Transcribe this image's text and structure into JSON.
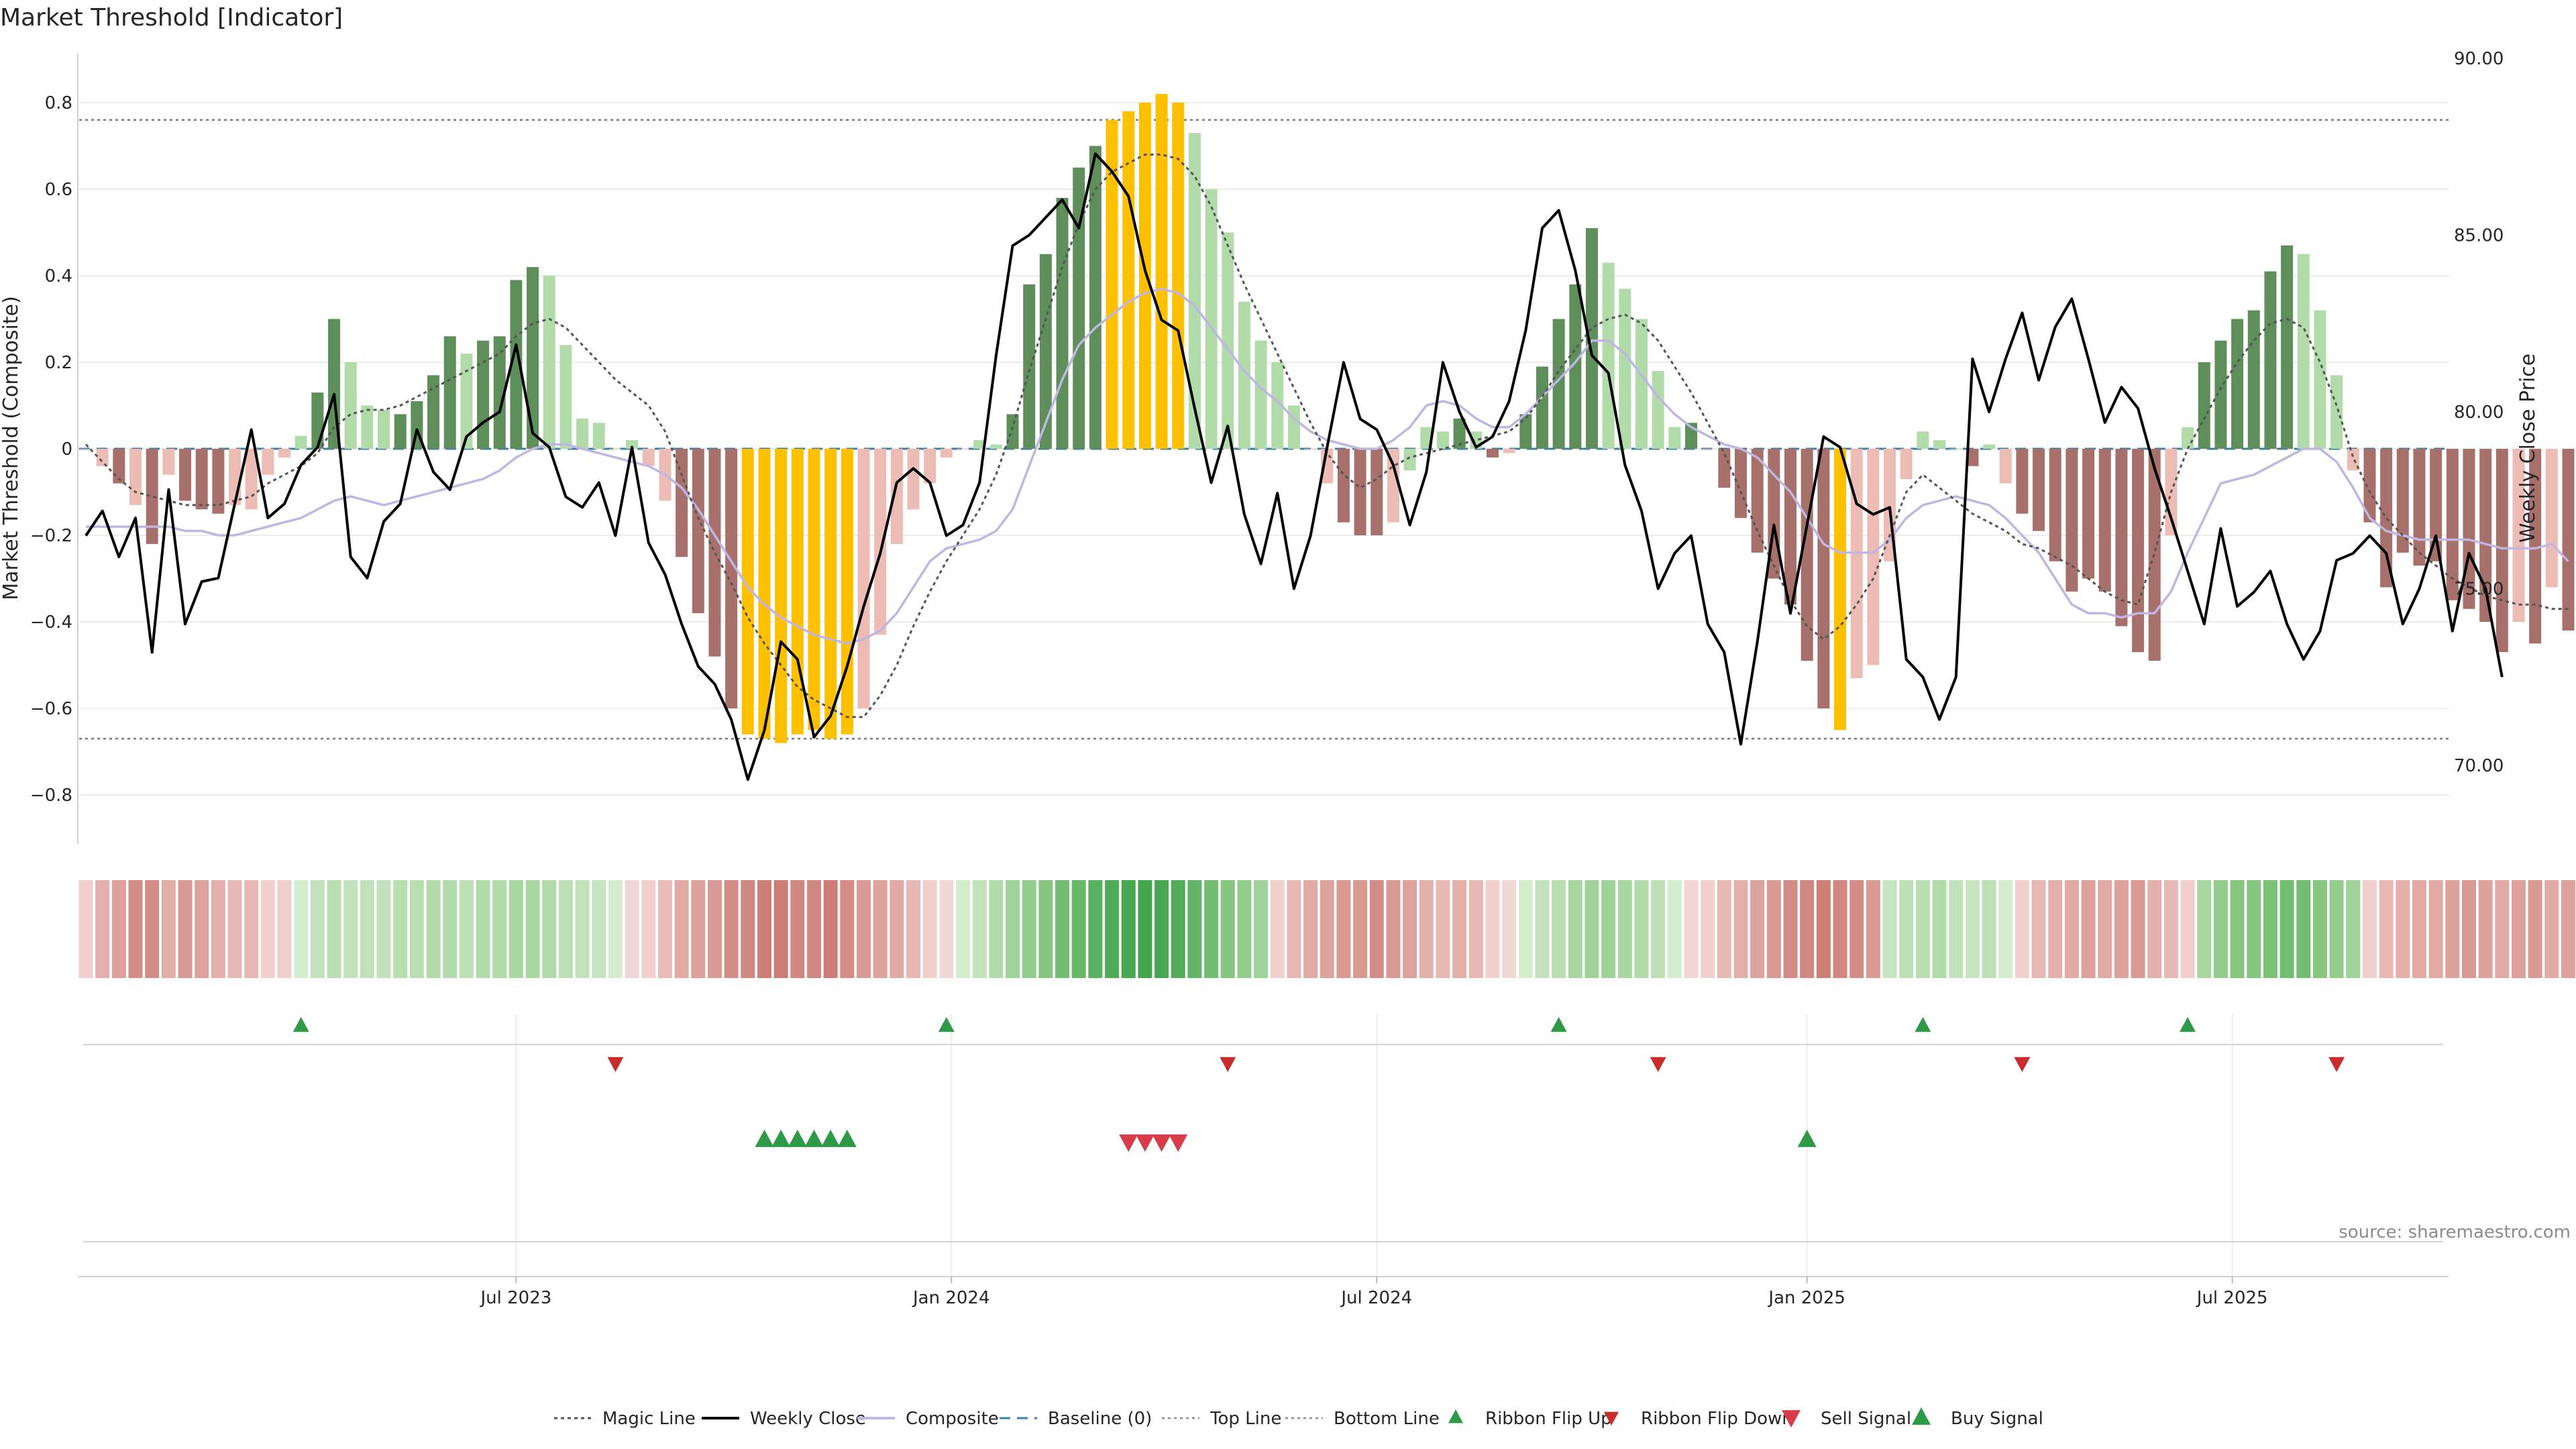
{
  "title": "Market Threshold [Indicator]",
  "source": "source: sharemaestro.com",
  "colors": {
    "bull_strong": "#5e8e5a",
    "bull_weak": "#b2dbaa",
    "bear_strong": "#a8706a",
    "bear_weak": "#ecbcb5",
    "extreme": "#ffc000",
    "magic_line": "#555555",
    "weekly_close": "#000000",
    "composite": "#c0b6e4",
    "baseline": "#3a7fa8",
    "ribbon_flip_up": "#2e9a48",
    "ribbon_flip_down": "#c82c2c",
    "sell_signal": "#d93b48",
    "buy_signal": "#2e9a48"
  },
  "chart_data": {
    "type": "bar",
    "title": "Market Threshold [Indicator]",
    "ylabel_left": "Market Threshold (Composite)",
    "ylabel_right": "Weekly Close Price",
    "ylim_left": [
      -0.92,
      0.92
    ],
    "ylim_right": [
      68.25,
      90.0
    ],
    "y_ticks_left": [
      "0.8",
      "0.6",
      "0.4",
      "0.2",
      "0",
      "−0.2",
      "−0.4",
      "−0.6",
      "−0.8"
    ],
    "y_ticks_right": [
      "90.00",
      "85.00",
      "80.00",
      "75.00",
      "70.00"
    ],
    "x_ticks": [
      "Jul 2023",
      "Jan 2024",
      "Jul 2024",
      "Jan 2025",
      "Jul 2025"
    ],
    "x_tick_weeks": [
      26,
      52.3,
      78,
      104,
      129.7
    ],
    "top_line": 0.76,
    "bottom_line": -0.67,
    "baseline": 0,
    "grid": true,
    "legend_position": "bottom-center",
    "week_start": "2023-01-06",
    "composite": [
      0,
      -0.04,
      -0.08,
      -0.13,
      -0.22,
      -0.06,
      -0.12,
      -0.14,
      -0.15,
      -0.13,
      -0.14,
      -0.06,
      -0.02,
      0.03,
      0.13,
      0.3,
      0.2,
      0.1,
      0.09,
      0.08,
      0.11,
      0.17,
      0.26,
      0.22,
      0.25,
      0.26,
      0.39,
      0.42,
      0.4,
      0.24,
      0.07,
      0.06,
      0,
      0.02,
      -0.04,
      -0.12,
      -0.25,
      -0.38,
      -0.48,
      -0.6,
      -0.66,
      -0.67,
      -0.68,
      -0.66,
      -0.65,
      -0.67,
      -0.66,
      -0.6,
      -0.43,
      -0.22,
      -0.14,
      -0.08,
      -0.02,
      0,
      0.02,
      0.01,
      0.08,
      0.38,
      0.45,
      0.58,
      0.65,
      0.7,
      0.76,
      0.78,
      0.8,
      0.82,
      0.8,
      0.73,
      0.6,
      0.5,
      0.34,
      0.25,
      0.2,
      0.1,
      0,
      -0.08,
      -0.17,
      -0.2,
      -0.2,
      -0.17,
      -0.05,
      0.05,
      0.04,
      0.07,
      0.04,
      -0.02,
      -0.01,
      0.08,
      0.19,
      0.3,
      0.38,
      0.51,
      0.43,
      0.37,
      0.3,
      0.18,
      0.05,
      0.06,
      0,
      -0.09,
      -0.16,
      -0.24,
      -0.3,
      -0.36,
      -0.49,
      -0.6,
      -0.65,
      -0.53,
      -0.5,
      -0.26,
      -0.07,
      0.04,
      0.02,
      0,
      -0.04,
      0.01,
      -0.08,
      -0.15,
      -0.19,
      -0.26,
      -0.33,
      -0.3,
      -0.33,
      -0.41,
      -0.47,
      -0.49,
      -0.2,
      0.05,
      0.2,
      0.25,
      0.3,
      0.32,
      0.41,
      0.47,
      0.45,
      0.32,
      0.17,
      -0.05,
      -0.17,
      -0.32,
      -0.24,
      -0.27,
      -0.26,
      -0.35,
      -0.37,
      -0.4,
      -0.47,
      -0.4,
      -0.45,
      -0.32,
      -0.42
    ],
    "bar_class": [
      "bear_weak",
      "bear_weak",
      "bear_strong",
      "bear_weak",
      "bear_strong",
      "bear_weak",
      "bear_strong",
      "bear_strong",
      "bear_strong",
      "bear_weak",
      "bear_weak",
      "bear_weak",
      "bear_weak",
      "bull_weak",
      "bull_strong",
      "bull_strong",
      "bull_weak",
      "bull_weak",
      "bull_weak",
      "bull_strong",
      "bull_strong",
      "bull_strong",
      "bull_strong",
      "bull_weak",
      "bull_strong",
      "bull_strong",
      "bull_strong",
      "bull_strong",
      "bull_weak",
      "bull_weak",
      "bull_weak",
      "bull_weak",
      "bull_weak",
      "bull_weak",
      "bear_weak",
      "bear_weak",
      "bear_strong",
      "bear_strong",
      "bear_strong",
      "bear_strong",
      "extreme",
      "extreme",
      "extreme",
      "extreme",
      "extreme",
      "extreme",
      "extreme",
      "bear_weak",
      "bear_weak",
      "bear_weak",
      "bear_weak",
      "bear_weak",
      "bear_weak",
      "bear_weak",
      "bull_weak",
      "bull_weak",
      "bull_strong",
      "bull_strong",
      "bull_strong",
      "bull_strong",
      "bull_strong",
      "bull_strong",
      "extreme",
      "extreme",
      "extreme",
      "extreme",
      "extreme",
      "bull_weak",
      "bull_weak",
      "bull_weak",
      "bull_weak",
      "bull_weak",
      "bull_weak",
      "bull_weak",
      "bear_weak",
      "bear_weak",
      "bear_strong",
      "bear_strong",
      "bear_strong",
      "bear_weak",
      "bull_weak",
      "bull_weak",
      "bull_weak",
      "bull_strong",
      "bull_weak",
      "bear_strong",
      "bear_weak",
      "bull_strong",
      "bull_strong",
      "bull_strong",
      "bull_strong",
      "bull_strong",
      "bull_weak",
      "bull_weak",
      "bull_weak",
      "bull_weak",
      "bull_weak",
      "bull_strong",
      "bear_weak",
      "bear_strong",
      "bear_strong",
      "bear_strong",
      "bear_strong",
      "bear_strong",
      "bear_strong",
      "bear_strong",
      "extreme",
      "bear_weak",
      "bear_weak",
      "bear_weak",
      "bear_weak",
      "bull_weak",
      "bull_weak",
      "bull_weak",
      "bear_strong",
      "bull_weak",
      "bear_weak",
      "bear_strong",
      "bear_strong",
      "bear_strong",
      "bear_strong",
      "bear_strong",
      "bear_strong",
      "bear_strong",
      "bear_strong",
      "bear_strong",
      "bear_weak",
      "bull_weak",
      "bull_strong",
      "bull_strong",
      "bull_strong",
      "bull_strong",
      "bull_strong",
      "bull_strong",
      "bull_weak",
      "bull_weak",
      "bull_weak",
      "bear_weak",
      "bear_strong",
      "bear_strong",
      "bear_strong",
      "bear_strong",
      "bear_strong",
      "bear_strong",
      "bear_strong",
      "bear_strong",
      "bear_strong",
      "bear_weak",
      "bear_strong",
      "bear_weak",
      "bear_strong"
    ],
    "weekly_close": [
      76.5,
      77.2,
      75.9,
      77.0,
      73.2,
      77.8,
      74.0,
      75.2,
      75.3,
      77.4,
      79.5,
      77.0,
      77.4,
      78.5,
      79.0,
      80.5,
      75.9,
      75.3,
      76.9,
      77.4,
      79.5,
      78.3,
      77.8,
      79.3,
      79.7,
      80.0,
      81.9,
      79.4,
      79.0,
      77.6,
      77.3,
      78.0,
      76.5,
      79.0,
      76.3,
      75.4,
      74.0,
      72.8,
      72.3,
      71.3,
      69.6,
      71.0,
      73.5,
      73.0,
      70.8,
      71.4,
      72.8,
      74.5,
      76.0,
      78.0,
      78.4,
      78.0,
      76.5,
      76.8,
      78.0,
      81.6,
      84.7,
      85.0,
      85.5,
      86.0,
      85.2,
      87.3,
      86.8,
      86.1,
      84.0,
      82.6,
      82.3,
      80.1,
      78.0,
      79.6,
      77.1,
      75.7,
      77.7,
      75.0,
      76.5,
      79.0,
      81.4,
      79.8,
      79.5,
      78.5,
      76.8,
      78.3,
      81.4,
      80.0,
      79.0,
      79.3,
      80.3,
      82.3,
      85.2,
      85.7,
      84.0,
      81.6,
      81.1,
      78.5,
      77.2,
      75.0,
      76.0,
      76.5,
      74.0,
      73.2,
      70.6,
      73.5,
      76.8,
      74.3,
      76.8,
      79.3,
      79.0,
      77.4,
      77.1,
      77.3,
      73.0,
      72.5,
      71.3,
      72.5,
      81.5,
      80.0,
      81.5,
      82.8,
      80.9,
      82.4,
      83.2,
      81.5,
      79.7,
      80.7,
      80.1,
      78.4,
      77.0,
      75.5,
      74.0,
      76.7,
      74.5,
      74.9,
      75.5,
      74.0,
      73.0,
      73.8,
      75.8,
      76.0,
      76.5,
      76.0,
      74.0,
      75.0,
      76.5,
      73.8,
      76.0,
      75.0,
      72.5
    ],
    "composite_smooth": [
      -0.18,
      -0.18,
      -0.18,
      -0.18,
      -0.18,
      -0.18,
      -0.19,
      -0.19,
      -0.2,
      -0.2,
      -0.19,
      -0.18,
      -0.17,
      -0.16,
      -0.14,
      -0.12,
      -0.11,
      -0.12,
      -0.13,
      -0.12,
      -0.11,
      -0.1,
      -0.09,
      -0.08,
      -0.07,
      -0.05,
      -0.02,
      0.0,
      0.01,
      0.01,
      0.0,
      -0.01,
      -0.02,
      -0.03,
      -0.04,
      -0.06,
      -0.09,
      -0.14,
      -0.2,
      -0.26,
      -0.32,
      -0.36,
      -0.39,
      -0.41,
      -0.43,
      -0.44,
      -0.45,
      -0.44,
      -0.42,
      -0.38,
      -0.32,
      -0.26,
      -0.23,
      -0.22,
      -0.21,
      -0.19,
      -0.14,
      -0.04,
      0.06,
      0.16,
      0.24,
      0.28,
      0.31,
      0.34,
      0.36,
      0.37,
      0.36,
      0.33,
      0.28,
      0.23,
      0.18,
      0.14,
      0.11,
      0.07,
      0.04,
      0.02,
      0.01,
      0.0,
      0.0,
      0.02,
      0.05,
      0.1,
      0.11,
      0.1,
      0.07,
      0.05,
      0.05,
      0.08,
      0.12,
      0.16,
      0.2,
      0.25,
      0.25,
      0.22,
      0.17,
      0.12,
      0.08,
      0.05,
      0.03,
      0.01,
      0.0,
      -0.02,
      -0.06,
      -0.1,
      -0.16,
      -0.22,
      -0.24,
      -0.24,
      -0.24,
      -0.21,
      -0.16,
      -0.13,
      -0.12,
      -0.11,
      -0.12,
      -0.13,
      -0.16,
      -0.2,
      -0.24,
      -0.3,
      -0.36,
      -0.38,
      -0.38,
      -0.39,
      -0.38,
      -0.38,
      -0.33,
      -0.24,
      -0.16,
      -0.08,
      -0.07,
      -0.06,
      -0.04,
      -0.02,
      0.0,
      0.0,
      -0.03,
      -0.09,
      -0.16,
      -0.19,
      -0.2,
      -0.21,
      -0.21,
      -0.21,
      -0.21,
      -0.22,
      -0.23,
      -0.23,
      -0.23,
      -0.22,
      -0.26
    ],
    "magic_line": [
      0.01,
      -0.03,
      -0.07,
      -0.1,
      -0.11,
      -0.12,
      -0.13,
      -0.13,
      -0.13,
      -0.12,
      -0.11,
      -0.08,
      -0.06,
      -0.04,
      -0.01,
      0.05,
      0.08,
      0.09,
      0.09,
      0.1,
      0.12,
      0.14,
      0.16,
      0.18,
      0.2,
      0.22,
      0.26,
      0.29,
      0.3,
      0.28,
      0.24,
      0.2,
      0.16,
      0.13,
      0.1,
      0.04,
      -0.06,
      -0.16,
      -0.24,
      -0.31,
      -0.39,
      -0.45,
      -0.5,
      -0.55,
      -0.58,
      -0.6,
      -0.62,
      -0.62,
      -0.57,
      -0.5,
      -0.41,
      -0.33,
      -0.26,
      -0.2,
      -0.14,
      -0.06,
      0.05,
      0.18,
      0.3,
      0.42,
      0.52,
      0.6,
      0.64,
      0.66,
      0.68,
      0.68,
      0.67,
      0.63,
      0.56,
      0.47,
      0.38,
      0.3,
      0.22,
      0.14,
      0.06,
      -0.01,
      -0.06,
      -0.09,
      -0.07,
      -0.04,
      -0.02,
      -0.01,
      0.0,
      0.01,
      0.02,
      0.03,
      0.04,
      0.07,
      0.12,
      0.18,
      0.23,
      0.28,
      0.3,
      0.31,
      0.29,
      0.25,
      0.19,
      0.13,
      0.06,
      -0.01,
      -0.1,
      -0.19,
      -0.27,
      -0.35,
      -0.41,
      -0.44,
      -0.41,
      -0.36,
      -0.3,
      -0.2,
      -0.1,
      -0.06,
      -0.09,
      -0.12,
      -0.15,
      -0.17,
      -0.19,
      -0.22,
      -0.23,
      -0.25,
      -0.27,
      -0.3,
      -0.33,
      -0.35,
      -0.36,
      -0.24,
      -0.1,
      0.0,
      0.07,
      0.14,
      0.2,
      0.25,
      0.29,
      0.3,
      0.28,
      0.2,
      0.1,
      -0.02,
      -0.1,
      -0.16,
      -0.2,
      -0.24,
      -0.27,
      -0.3,
      -0.32,
      -0.34,
      -0.35,
      -0.36,
      -0.36,
      -0.37,
      -0.37
    ],
    "ribbon_colors": [
      "#f0cfcc",
      "#e4b0ac",
      "#dea29c",
      "#d48c86",
      "#d48c86",
      "#e2aea8",
      "#d89a93",
      "#dea29c",
      "#e4b0ac",
      "#e8b8b4",
      "#e8b8b4",
      "#f2d0cc",
      "#f0d0cc",
      "#d5eccf",
      "#c2e2bb",
      "#b9dfb0",
      "#c2e2bb",
      "#c2e2bb",
      "#c2e2bb",
      "#b9dfb0",
      "#b9dfb0",
      "#b1dba9",
      "#b1dba9",
      "#bde0b6",
      "#b1dba9",
      "#b1dba9",
      "#a9d7a0",
      "#a9d7a0",
      "#b1dba9",
      "#bde0b6",
      "#c2e2bb",
      "#c8e5c1",
      "#d5eccf",
      "#f0d6d2",
      "#f0d0cc",
      "#e8bdb8",
      "#e2aaa4",
      "#dea29c",
      "#d89a93",
      "#d48c86",
      "#d08882",
      "#cd7e77",
      "#cd7e77",
      "#d08882",
      "#d08882",
      "#cd7e77",
      "#d48c86",
      "#d89a93",
      "#dea29c",
      "#e2aaa4",
      "#e8b8b4",
      "#f0cfcc",
      "#f2d8d4",
      "#d5eccf",
      "#c2e2bb",
      "#b1dba9",
      "#a0d399",
      "#93cd8b",
      "#86c680",
      "#73bd72",
      "#6ab86a",
      "#5cb160",
      "#4fab57",
      "#48a751",
      "#44a54d",
      "#4aa852",
      "#53ac5a",
      "#62b466",
      "#73bd72",
      "#86c680",
      "#93cd8b",
      "#a0d399",
      "#f0cfcc",
      "#e8b8b4",
      "#e2aaa4",
      "#dea29c",
      "#d89a93",
      "#d89a93",
      "#d48c86",
      "#d89a93",
      "#dea29c",
      "#e4b0ac",
      "#e8b8b4",
      "#e4b0ac",
      "#e8b8b4",
      "#f2d0cc",
      "#f0d8d4",
      "#d5eccf",
      "#c2e2bb",
      "#b9dfb0",
      "#a9d7a0",
      "#a0d399",
      "#a0d399",
      "#a9d7a0",
      "#b1dba9",
      "#bde0b6",
      "#d5eccf",
      "#f0d6d2",
      "#f0cfcc",
      "#e8b8b4",
      "#e4b0ac",
      "#dea29c",
      "#d89a93",
      "#d48c86",
      "#d08882",
      "#cd7e77",
      "#d08882",
      "#d48c86",
      "#d89a93",
      "#c8e5c1",
      "#bde0b6",
      "#b9dfb0",
      "#b1dba9",
      "#c2e2bb",
      "#c8e5c1",
      "#bde0b6",
      "#d5eccf",
      "#f0cfcc",
      "#e8b8b4",
      "#e4b0ac",
      "#e2aaa4",
      "#dea29c",
      "#e2aaa4",
      "#dea29c",
      "#d89a93",
      "#e4b0ac",
      "#e8b8b4",
      "#f0cfcc",
      "#a9d7a0",
      "#93cd8b",
      "#86c680",
      "#86c680",
      "#7cc178",
      "#73bd72",
      "#73bd72",
      "#86c680",
      "#93cd8b",
      "#a0d399",
      "#f0cfcc",
      "#e8b8b4",
      "#e4b0ac",
      "#e2aaa4",
      "#e2aaa4",
      "#dea29c",
      "#d89a93",
      "#dea29c",
      "#e2aaa4",
      "#dea29c",
      "#d89a93",
      "#e2aaa4",
      "#dea29c",
      "#e2aaa4"
    ],
    "ribbon_flip_up_weeks": [
      13,
      52,
      89,
      111,
      127
    ],
    "ribbon_flip_down_weeks": [
      32,
      69,
      95,
      117,
      136
    ],
    "buy_signal_weeks": [
      41,
      42,
      43,
      44,
      45,
      46,
      104
    ],
    "sell_signal_weeks": [
      63,
      64,
      65,
      66
    ]
  },
  "legend": [
    {
      "key": "magic_line",
      "label": "Magic Line",
      "symbol": "dotted-line"
    },
    {
      "key": "weekly_close",
      "label": "Weekly Close",
      "symbol": "solid-line"
    },
    {
      "key": "composite",
      "label": "Composite",
      "symbol": "light-line"
    },
    {
      "key": "baseline",
      "label": "Baseline (0)",
      "symbol": "dashed-line"
    },
    {
      "key": "top_line",
      "label": "Top Line",
      "symbol": "fine-dotted-line"
    },
    {
      "key": "bottom_line",
      "label": "Bottom Line",
      "symbol": "fine-dotted-line"
    },
    {
      "key": "ribbon_flip_up",
      "label": "Ribbon Flip Up",
      "symbol": "triangle-up"
    },
    {
      "key": "ribbon_flip_down",
      "label": "Ribbon Flip Down",
      "symbol": "triangle-down-small"
    },
    {
      "key": "sell_signal",
      "label": "Sell Signal",
      "symbol": "triangle-down"
    },
    {
      "key": "buy_signal",
      "label": "Buy Signal",
      "symbol": "triangle-up-large"
    }
  ]
}
